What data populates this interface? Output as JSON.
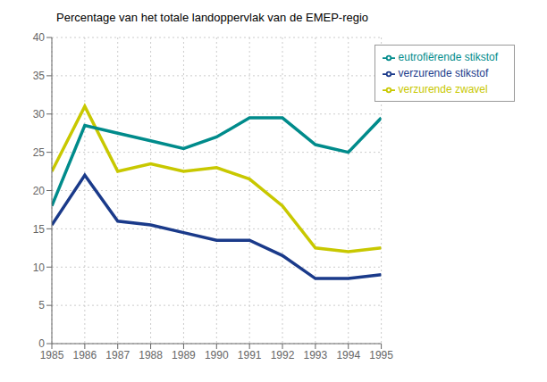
{
  "chart_data": {
    "type": "line",
    "title": "Percentage van het totale landoppervlak van de EMEP-regio",
    "x": [
      1985,
      1986,
      1987,
      1988,
      1989,
      1990,
      1991,
      1992,
      1993,
      1994,
      1995
    ],
    "series": [
      {
        "name": "verzurende zwavel",
        "color": "#c8c800",
        "values": [
          22.5,
          31.0,
          22.5,
          23.5,
          22.5,
          23.0,
          21.5,
          18.0,
          12.5,
          12.0,
          12.5
        ]
      },
      {
        "name": "verzurende stikstof",
        "color": "#1a3a8a",
        "values": [
          15.5,
          22.0,
          16.0,
          15.5,
          14.5,
          13.5,
          13.5,
          11.5,
          8.5,
          8.5,
          9.0
        ]
      },
      {
        "name": "eutrofiërende stikstof",
        "color": "#008b8b",
        "values": [
          18.0,
          28.5,
          27.5,
          26.5,
          25.5,
          27.0,
          29.5,
          29.5,
          26.0,
          25.0,
          29.5
        ]
      }
    ],
    "xlim": [
      1985,
      1995
    ],
    "xticks": [
      1985,
      1986,
      1987,
      1988,
      1989,
      1990,
      1991,
      1992,
      1993,
      1994,
      1995
    ],
    "ylim": [
      0,
      40
    ],
    "yticks": [
      0,
      5,
      10,
      15,
      20,
      25,
      30,
      35,
      40
    ],
    "grid": true,
    "legend": "upper right"
  }
}
